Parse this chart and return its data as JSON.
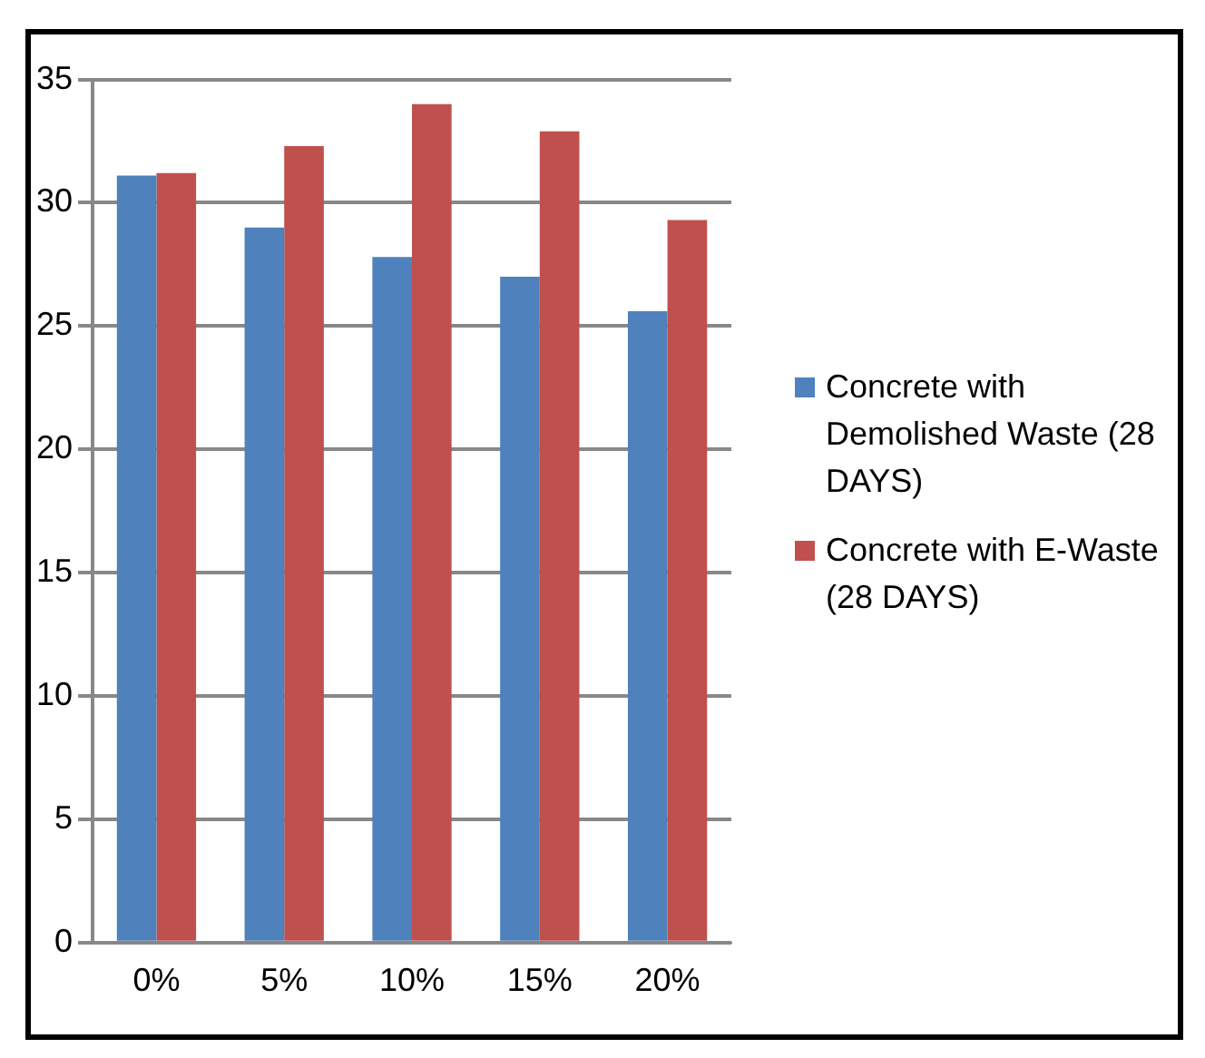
{
  "chart_data": {
    "type": "bar",
    "categories": [
      "0%",
      "5%",
      "10%",
      "15%",
      "20%"
    ],
    "series": [
      {
        "name": "Concrete with Demolished Waste (28 DAYS)",
        "color": "#4f81bd",
        "values": [
          31.1,
          29.0,
          27.8,
          27.0,
          25.6
        ]
      },
      {
        "name": "Concrete with E-Waste (28 DAYS)",
        "color": "#c0504d",
        "values": [
          31.2,
          32.3,
          34.0,
          32.9,
          29.3
        ]
      }
    ],
    "ylim": [
      0,
      35
    ],
    "yticks": [
      0,
      5,
      10,
      15,
      20,
      25,
      30,
      35
    ],
    "grid": "y",
    "legend": "right"
  }
}
